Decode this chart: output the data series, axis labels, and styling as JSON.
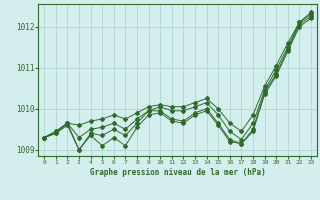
{
  "xlabel": "Graphe pression niveau de la mer (hPa)",
  "x": [
    0,
    1,
    2,
    3,
    4,
    5,
    6,
    7,
    8,
    9,
    10,
    11,
    12,
    13,
    14,
    15,
    16,
    17,
    18,
    19,
    20,
    21,
    22,
    23
  ],
  "series1": [
    1009.3,
    1009.45,
    1009.65,
    1009.6,
    1009.7,
    1009.75,
    1009.85,
    1009.75,
    1009.9,
    1010.05,
    1010.1,
    1010.05,
    1010.05,
    1010.15,
    1010.25,
    1010.0,
    1009.65,
    1009.45,
    1009.85,
    1010.55,
    1011.05,
    1011.6,
    1012.1,
    1012.35
  ],
  "series2": [
    1009.3,
    1009.45,
    1009.65,
    1009.3,
    1009.5,
    1009.55,
    1009.65,
    1009.5,
    1009.75,
    1009.95,
    1010.05,
    1009.95,
    1009.95,
    1010.05,
    1010.15,
    1009.85,
    1009.45,
    1009.25,
    1009.65,
    1010.45,
    1010.95,
    1011.5,
    1012.1,
    1012.3
  ],
  "series3": [
    1009.3,
    1009.4,
    1009.65,
    1009.0,
    1009.4,
    1009.35,
    1009.5,
    1009.35,
    1009.65,
    1009.95,
    1009.95,
    1009.75,
    1009.7,
    1009.9,
    1010.0,
    1009.65,
    1009.25,
    1009.15,
    1009.5,
    1010.4,
    1010.85,
    1011.45,
    1012.05,
    1012.25
  ],
  "series4": [
    1009.3,
    1009.4,
    1009.6,
    1009.0,
    1009.35,
    1009.1,
    1009.3,
    1009.1,
    1009.55,
    1009.85,
    1009.9,
    1009.7,
    1009.65,
    1009.85,
    1009.95,
    1009.6,
    1009.2,
    1009.15,
    1009.45,
    1010.35,
    1010.8,
    1011.4,
    1012.0,
    1012.2
  ],
  "line_color": "#2d6a2d",
  "bg_color": "#d4eeee",
  "grid_color": "#aacece",
  "ylim_low": 1008.85,
  "ylim_high": 1012.55,
  "yticks": [
    1009,
    1010,
    1011,
    1012
  ],
  "xticks": [
    0,
    1,
    2,
    3,
    4,
    5,
    6,
    7,
    8,
    9,
    10,
    11,
    12,
    13,
    14,
    15,
    16,
    17,
    18,
    19,
    20,
    21,
    22,
    23
  ]
}
